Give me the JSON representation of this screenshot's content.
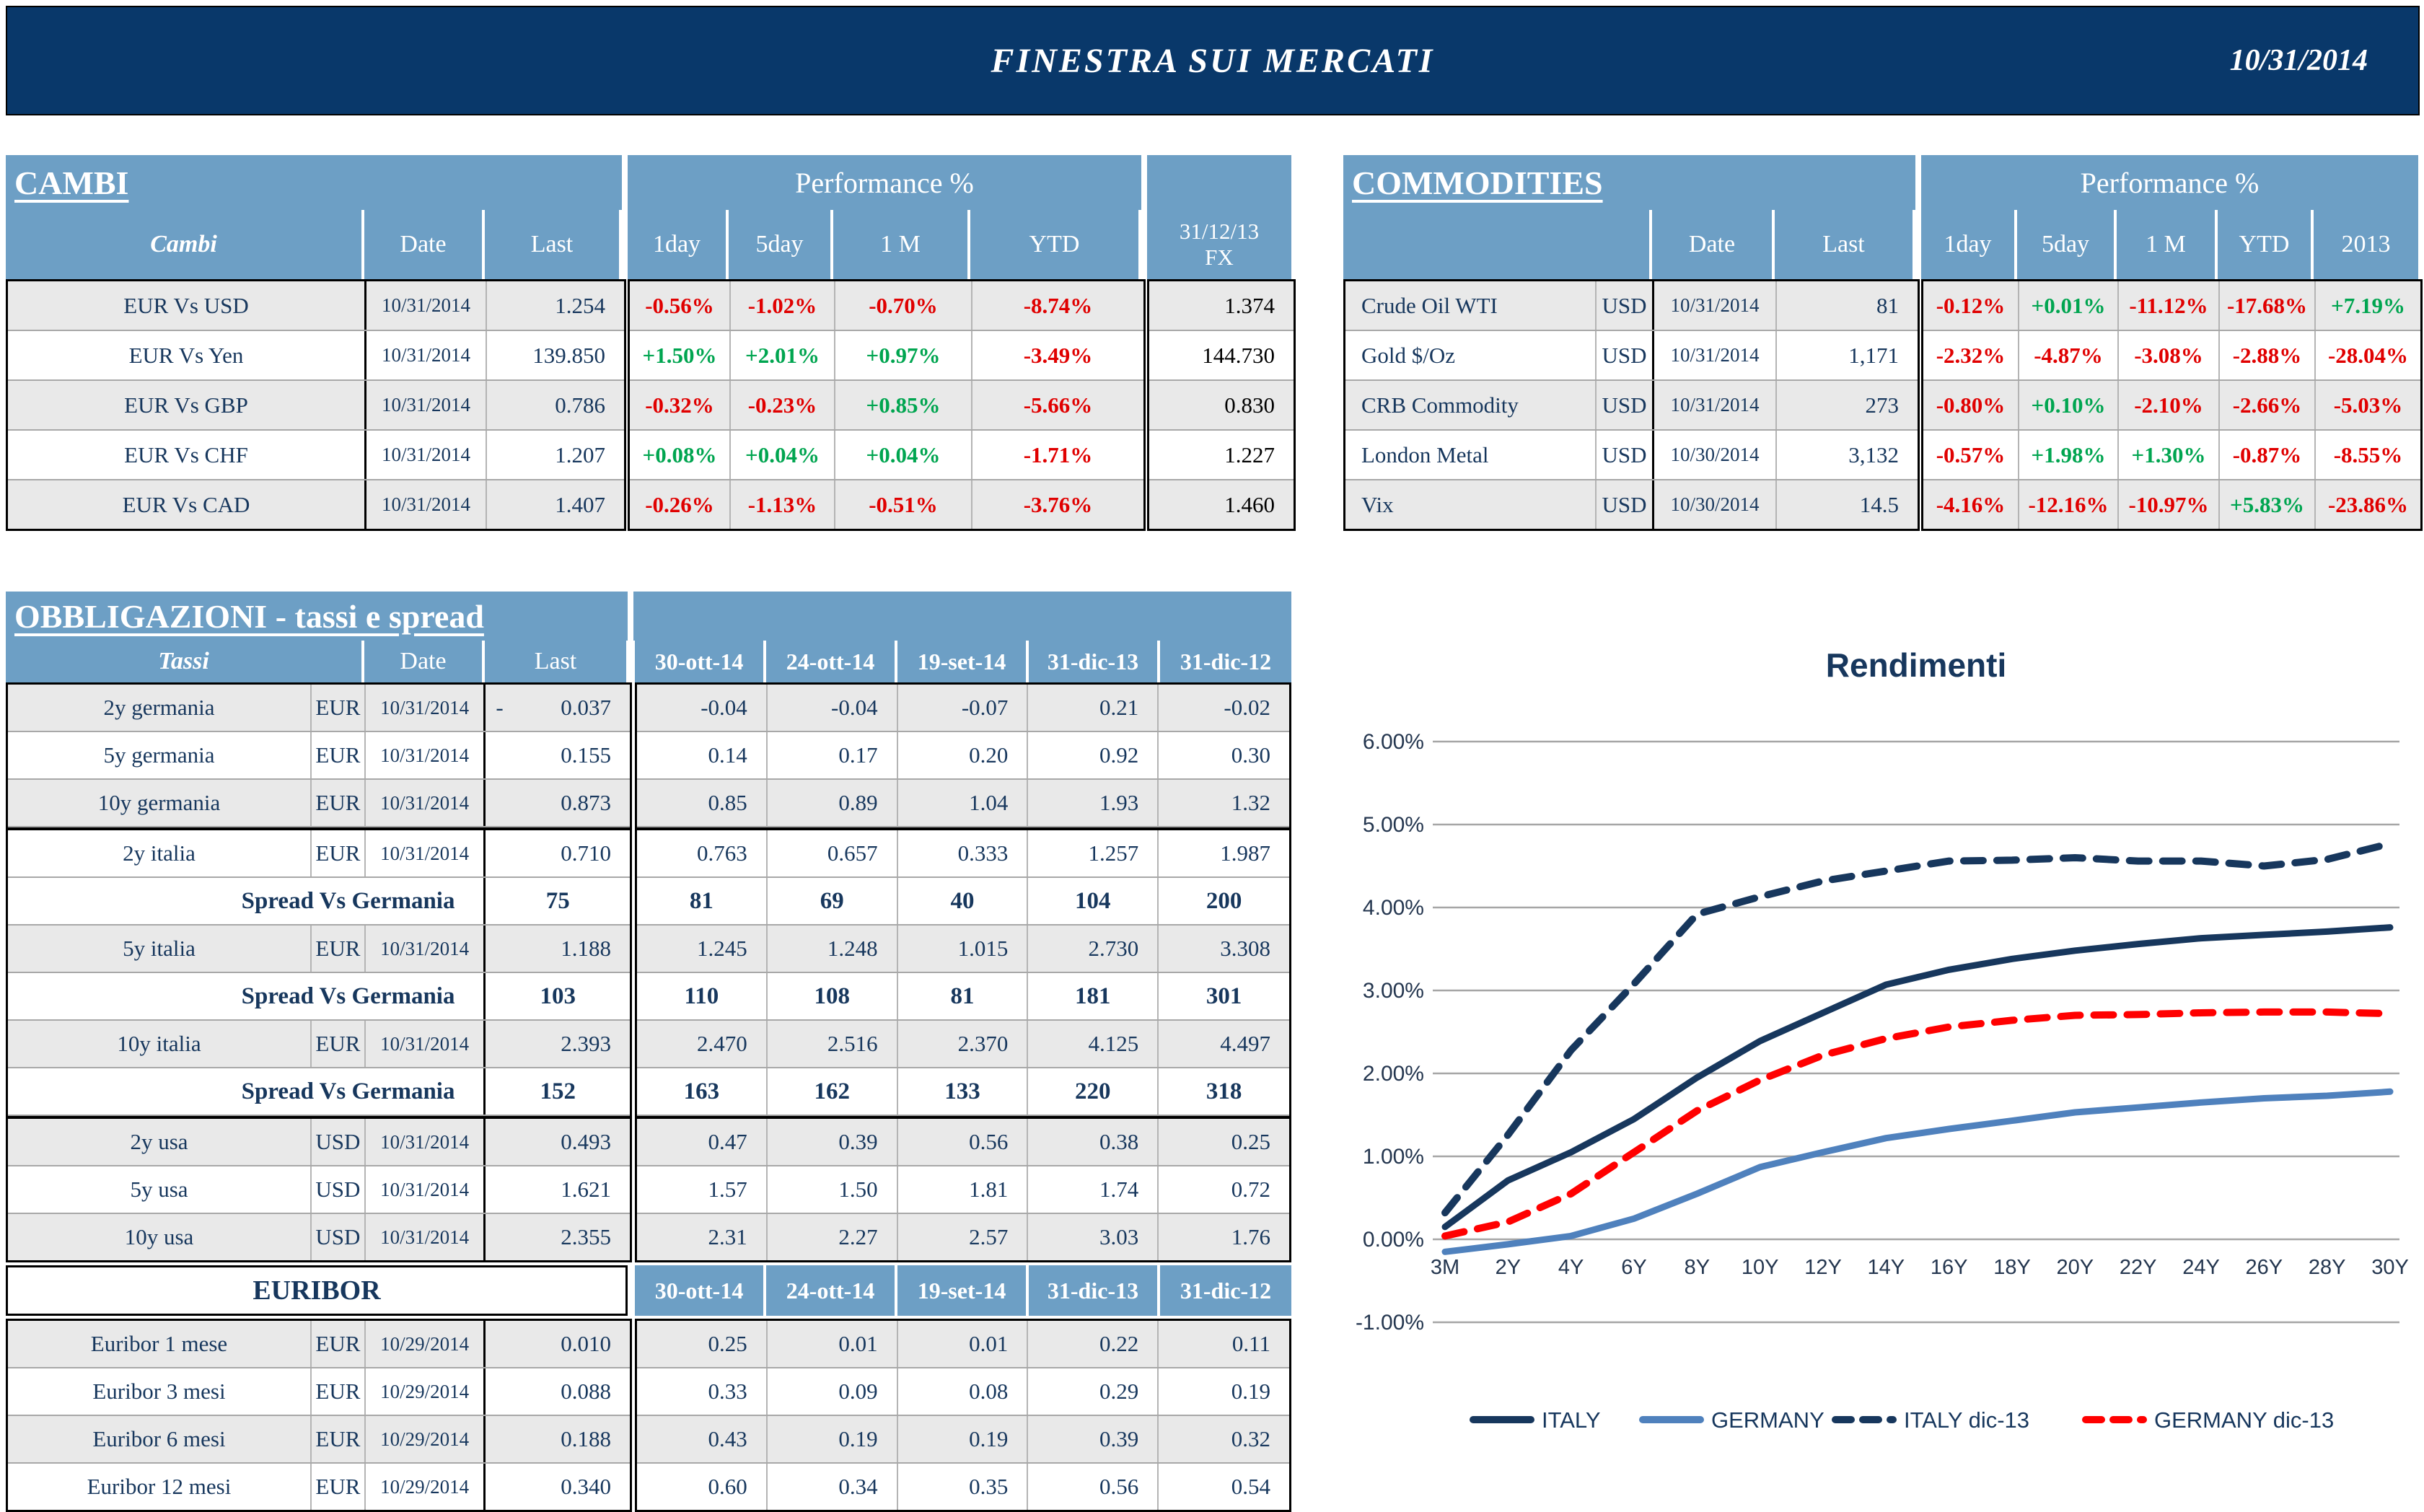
{
  "header": {
    "title": "FINESTRA SUI MERCATI",
    "date": "10/31/2014"
  },
  "colors": {
    "topbar_navy": "#09386a",
    "table_header_blue": "#6d9fc5",
    "row_alt_gray": "#e9e9e9",
    "text_navy": "#17375d",
    "positive_green": "#00a550",
    "negative_red": "#e00000",
    "gridline_gray": "#a6a6a6",
    "italy_line": "#17375d",
    "germany_line": "#4f81bd",
    "italy_dic13_line": "#17375d",
    "germany_dic13_line": "#ff0000"
  },
  "cambi": {
    "section_title": "CAMBI",
    "perf_title": "Performance  %",
    "columns": {
      "name": "Cambi",
      "date": "Date",
      "last": "Last",
      "perf": [
        "1day",
        "5day",
        "1 M",
        "YTD"
      ],
      "fx_line1": "31/12/13",
      "fx_line2": "FX"
    },
    "rows": [
      {
        "name": "EUR Vs USD",
        "date": "10/31/2014",
        "last": "1.254",
        "perf": [
          "-0.56%",
          "-1.02%",
          "-0.70%",
          "-8.74%"
        ],
        "fx": "1.374"
      },
      {
        "name": "EUR Vs Yen",
        "date": "10/31/2014",
        "last": "139.850",
        "perf": [
          "+1.50%",
          "+2.01%",
          "+0.97%",
          "-3.49%"
        ],
        "fx": "144.730"
      },
      {
        "name": "EUR Vs GBP",
        "date": "10/31/2014",
        "last": "0.786",
        "perf": [
          "-0.32%",
          "-0.23%",
          "+0.85%",
          "-5.66%"
        ],
        "fx": "0.830"
      },
      {
        "name": "EUR Vs CHF",
        "date": "10/31/2014",
        "last": "1.207",
        "perf": [
          "+0.08%",
          "+0.04%",
          "+0.04%",
          "-1.71%"
        ],
        "fx": "1.227"
      },
      {
        "name": "EUR Vs CAD",
        "date": "10/31/2014",
        "last": "1.407",
        "perf": [
          "-0.26%",
          "-1.13%",
          "-0.51%",
          "-3.76%"
        ],
        "fx": "1.460"
      }
    ]
  },
  "commodities": {
    "section_title": "COMMODITIES",
    "perf_title": "Performance  %",
    "columns": {
      "date": "Date",
      "last": "Last",
      "perf": [
        "1day",
        "5day",
        "1 M",
        "YTD",
        "2013"
      ]
    },
    "rows": [
      {
        "name": "Crude Oil WTI",
        "ccy": "USD",
        "date": "10/31/2014",
        "last": "81",
        "perf": [
          "-0.12%",
          "+0.01%",
          "-11.12%",
          "-17.68%",
          "+7.19%"
        ]
      },
      {
        "name": "Gold $/Oz",
        "ccy": "USD",
        "date": "10/31/2014",
        "last": "1,171",
        "perf": [
          "-2.32%",
          "-4.87%",
          "-3.08%",
          "-2.88%",
          "-28.04%"
        ]
      },
      {
        "name": "CRB Commodity",
        "ccy": "USD",
        "date": "10/31/2014",
        "last": "273",
        "perf": [
          "-0.80%",
          "+0.10%",
          "-2.10%",
          "-2.66%",
          "-5.03%"
        ]
      },
      {
        "name": "London Metal",
        "ccy": "USD",
        "date": "10/30/2014",
        "last": "3,132",
        "perf": [
          "-0.57%",
          "+1.98%",
          "+1.30%",
          "-0.87%",
          "-8.55%"
        ]
      },
      {
        "name": "Vix",
        "ccy": "USD",
        "date": "10/30/2014",
        "last": "14.5",
        "perf": [
          "-4.16%",
          "-12.16%",
          "-10.97%",
          "+5.83%",
          "-23.86%"
        ]
      }
    ]
  },
  "bonds": {
    "section_title": "OBBLIGAZIONI - tassi e spread",
    "columns": {
      "name": "Tassi",
      "date": "Date",
      "last": "Last",
      "hist": [
        "30-ott-14",
        "24-ott-14",
        "19-set-14",
        "31-dic-13",
        "31-dic-12"
      ]
    },
    "rows": [
      {
        "type": "data",
        "shade": "g",
        "name": "2y germania",
        "ccy": "EUR",
        "date": "10/31/2014",
        "last": "-|0.037",
        "hist": [
          "-0.04",
          "-0.04",
          "-0.07",
          "0.21",
          "-0.02"
        ]
      },
      {
        "type": "data",
        "shade": "w",
        "name": "5y germania",
        "ccy": "EUR",
        "date": "10/31/2014",
        "last": "0.155",
        "hist": [
          "0.14",
          "0.17",
          "0.20",
          "0.92",
          "0.30"
        ]
      },
      {
        "type": "data",
        "shade": "g",
        "name": "10y germania",
        "ccy": "EUR",
        "date": "10/31/2014",
        "last": "0.873",
        "hist": [
          "0.85",
          "0.89",
          "1.04",
          "1.93",
          "1.32"
        ],
        "sepAfter": true
      },
      {
        "type": "data",
        "shade": "w",
        "name": "2y italia",
        "ccy": "EUR",
        "date": "10/31/2014",
        "last": "0.710",
        "hist": [
          "0.763",
          "0.657",
          "0.333",
          "1.257",
          "1.987"
        ]
      },
      {
        "type": "spread",
        "shade": "w",
        "label": "Spread Vs Germania",
        "last": "75",
        "hist": [
          "81",
          "69",
          "40",
          "104",
          "200"
        ]
      },
      {
        "type": "data",
        "shade": "g",
        "name": "5y italia",
        "ccy": "EUR",
        "date": "10/31/2014",
        "last": "1.188",
        "hist": [
          "1.245",
          "1.248",
          "1.015",
          "2.730",
          "3.308"
        ]
      },
      {
        "type": "spread",
        "shade": "w",
        "label": "Spread Vs Germania",
        "last": "103",
        "hist": [
          "110",
          "108",
          "81",
          "181",
          "301"
        ]
      },
      {
        "type": "data",
        "shade": "g",
        "name": "10y italia",
        "ccy": "EUR",
        "date": "10/31/2014",
        "last": "2.393",
        "hist": [
          "2.470",
          "2.516",
          "2.370",
          "4.125",
          "4.497"
        ]
      },
      {
        "type": "spread",
        "shade": "w",
        "label": "Spread Vs Germania",
        "last": "152",
        "hist": [
          "163",
          "162",
          "133",
          "220",
          "318"
        ],
        "sepAfter": true
      },
      {
        "type": "data",
        "shade": "g",
        "name": "2y usa",
        "ccy": "USD",
        "date": "10/31/2014",
        "last": "0.493",
        "hist": [
          "0.47",
          "0.39",
          "0.56",
          "0.38",
          "0.25"
        ]
      },
      {
        "type": "data",
        "shade": "w",
        "name": "5y usa",
        "ccy": "USD",
        "date": "10/31/2014",
        "last": "1.621",
        "hist": [
          "1.57",
          "1.50",
          "1.81",
          "1.74",
          "0.72"
        ]
      },
      {
        "type": "data",
        "shade": "g",
        "name": "10y usa",
        "ccy": "USD",
        "date": "10/31/2014",
        "last": "2.355",
        "hist": [
          "2.31",
          "2.27",
          "2.57",
          "3.03",
          "1.76"
        ]
      }
    ],
    "euribor_label": "EURIBOR",
    "euribor_cols": [
      "30-ott-14",
      "24-ott-14",
      "19-set-14",
      "31-dic-13",
      "31-dic-12"
    ],
    "euribor_rows": [
      {
        "shade": "g",
        "name": "Euribor 1 mese",
        "ccy": "EUR",
        "date": "10/29/2014",
        "last": "0.010",
        "hist": [
          "0.25",
          "0.01",
          "0.01",
          "0.22",
          "0.11"
        ]
      },
      {
        "shade": "w",
        "name": "Euribor 3 mesi",
        "ccy": "EUR",
        "date": "10/29/2014",
        "last": "0.088",
        "hist": [
          "0.33",
          "0.09",
          "0.08",
          "0.29",
          "0.19"
        ]
      },
      {
        "shade": "g",
        "name": "Euribor 6 mesi",
        "ccy": "EUR",
        "date": "10/29/2014",
        "last": "0.188",
        "hist": [
          "0.43",
          "0.19",
          "0.19",
          "0.39",
          "0.32"
        ]
      },
      {
        "shade": "w",
        "name": "Euribor 12 mesi",
        "ccy": "EUR",
        "date": "10/29/2014",
        "last": "0.340",
        "hist": [
          "0.60",
          "0.34",
          "0.35",
          "0.56",
          "0.54"
        ]
      }
    ]
  },
  "chart_data": {
    "type": "line",
    "title": "Rendimenti",
    "x": [
      "3M",
      "2Y",
      "4Y",
      "6Y",
      "8Y",
      "10Y",
      "12Y",
      "14Y",
      "16Y",
      "18Y",
      "20Y",
      "22Y",
      "24Y",
      "26Y",
      "28Y",
      "30Y"
    ],
    "y_ticks": [
      "6.00%",
      "5.00%",
      "4.00%",
      "3.00%",
      "2.00%",
      "1.00%",
      "0.00%",
      "-1.00%"
    ],
    "ylim": [
      -1,
      6
    ],
    "grid": true,
    "legend_position": "bottom",
    "series": [
      {
        "name": "ITALY",
        "style": "solid",
        "color_key": "italy_line",
        "values": [
          0.15,
          0.71,
          1.05,
          1.45,
          1.95,
          2.39,
          2.73,
          3.07,
          3.25,
          3.38,
          3.48,
          3.56,
          3.63,
          3.67,
          3.71,
          3.76
        ]
      },
      {
        "name": "GERMANY",
        "style": "solid",
        "color_key": "germany_line",
        "values": [
          -0.15,
          -0.06,
          0.04,
          0.25,
          0.55,
          0.87,
          1.05,
          1.22,
          1.33,
          1.43,
          1.53,
          1.59,
          1.65,
          1.7,
          1.73,
          1.78
        ]
      },
      {
        "name": "ITALY dic-13",
        "style": "dashed",
        "color_key": "italy_dic13_line",
        "values": [
          0.32,
          1.26,
          2.28,
          3.08,
          3.92,
          4.13,
          4.32,
          4.44,
          4.56,
          4.57,
          4.6,
          4.56,
          4.56,
          4.5,
          4.58,
          4.77
        ]
      },
      {
        "name": "GERMANY dic-13",
        "style": "dashed",
        "color_key": "germany_dic13_line",
        "values": [
          0.04,
          0.21,
          0.55,
          1.05,
          1.55,
          1.92,
          2.22,
          2.42,
          2.56,
          2.64,
          2.7,
          2.71,
          2.73,
          2.74,
          2.74,
          2.72
        ]
      }
    ]
  }
}
